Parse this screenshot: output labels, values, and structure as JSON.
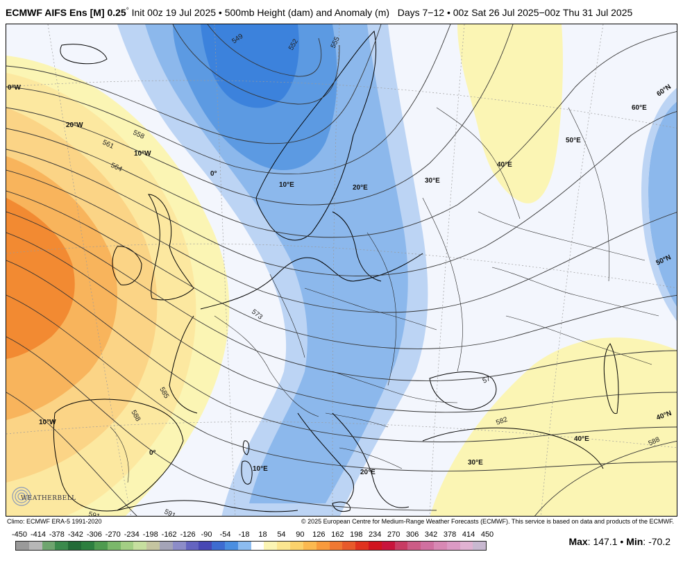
{
  "header": {
    "model": "ECMWF AIFS Ens [M] 0.25",
    "deg": "°",
    "init": "Init 00z 19 Jul 2025",
    "bullet": "•",
    "product": "500mb Height (dam) and Anomaly (m)",
    "days": "Days 7−12",
    "valid": "00z Sat 26 Jul 2025−00z Thu 31 Jul 2025"
  },
  "map": {
    "geo_labels": {
      "lon_0w": "0°W",
      "lon_20w": "20°W",
      "lon_10w": "10°W",
      "lon_0": "0°",
      "lon_10e_n": "10°E",
      "lon_20e_n": "20°E",
      "lon_30e_n": "30°E",
      "lon_40e_n": "40°E",
      "lon_50e": "50°E",
      "lon_60e": "60°E",
      "lat_60n": "60°N",
      "lat_50n": "50°N",
      "lat_40n": "40°N",
      "lon_10w_s": "10°W",
      "lon_0_s": "0°",
      "lon_10e_s": "10°E",
      "lon_20e_s": "20°E",
      "lon_30e_s": "30°E",
      "lon_40e_s": "40°E"
    },
    "contour_labels": {
      "c549": "549",
      "c552": "552",
      "c555": "555",
      "c558": "558",
      "c561": "561",
      "c564": "564",
      "c573": "573",
      "c585": "585",
      "c588": "588",
      "c582": "582",
      "c588e": "588",
      "c591": "591",
      "c591b": "591",
      "c57": "57"
    },
    "colors": {
      "background": "#f3f6fd",
      "negative_light": "#bcd4f4",
      "negative_mid": "#8cb8ec",
      "negative_deep": "#5c9ae2",
      "negative_core": "#3c82dc",
      "positive_light": "#fbf5b4",
      "positive_mid": "#fbdc86",
      "positive_deep": "#f8b45c",
      "positive_core": "#f28a32"
    }
  },
  "credits": {
    "climo": "Climo: ECMWF ERA-5 1991-2020",
    "copyright": "© 2025 European Centre for Medium-Range Weather Forecasts (ECMWF). This service is based on data and products of the ECMWF."
  },
  "logo": {
    "text": "WEATHERBELL"
  },
  "colorbar": {
    "ticks": [
      "-450",
      "-414",
      "-378",
      "-342",
      "-306",
      "-270",
      "-234",
      "-198",
      "-162",
      "-126",
      "-90",
      "-54",
      "-18",
      "18",
      "54",
      "90",
      "126",
      "162",
      "198",
      "234",
      "270",
      "306",
      "342",
      "378",
      "414",
      "450"
    ],
    "colors": [
      "#9a9a9a",
      "#b7b7b7",
      "#6fa56f",
      "#3b8a4c",
      "#236b37",
      "#2d7f3f",
      "#4f9b4f",
      "#7bb86a",
      "#a3cf84",
      "#c6df9f",
      "#c4c4a0",
      "#a4a4b8",
      "#8c8cc8",
      "#6464c0",
      "#4848b4",
      "#3e6cd0",
      "#4a8ee0",
      "#8cbcf0",
      "#ffffff",
      "#fbf5b4",
      "#fbe690",
      "#fbd26c",
      "#fbb950",
      "#f89a3c",
      "#f07832",
      "#e85a2a",
      "#e0321e",
      "#d0141e",
      "#c8143c",
      "#c83c64",
      "#cc5c86",
      "#d070a0",
      "#d888b4",
      "#dc9ac4",
      "#e0b2d2",
      "#c8b8d0"
    ]
  },
  "stats": {
    "max_label": "Max",
    "max_value": "147.1",
    "sep": "•",
    "min_label": "Min",
    "min_value": "-70.2"
  }
}
